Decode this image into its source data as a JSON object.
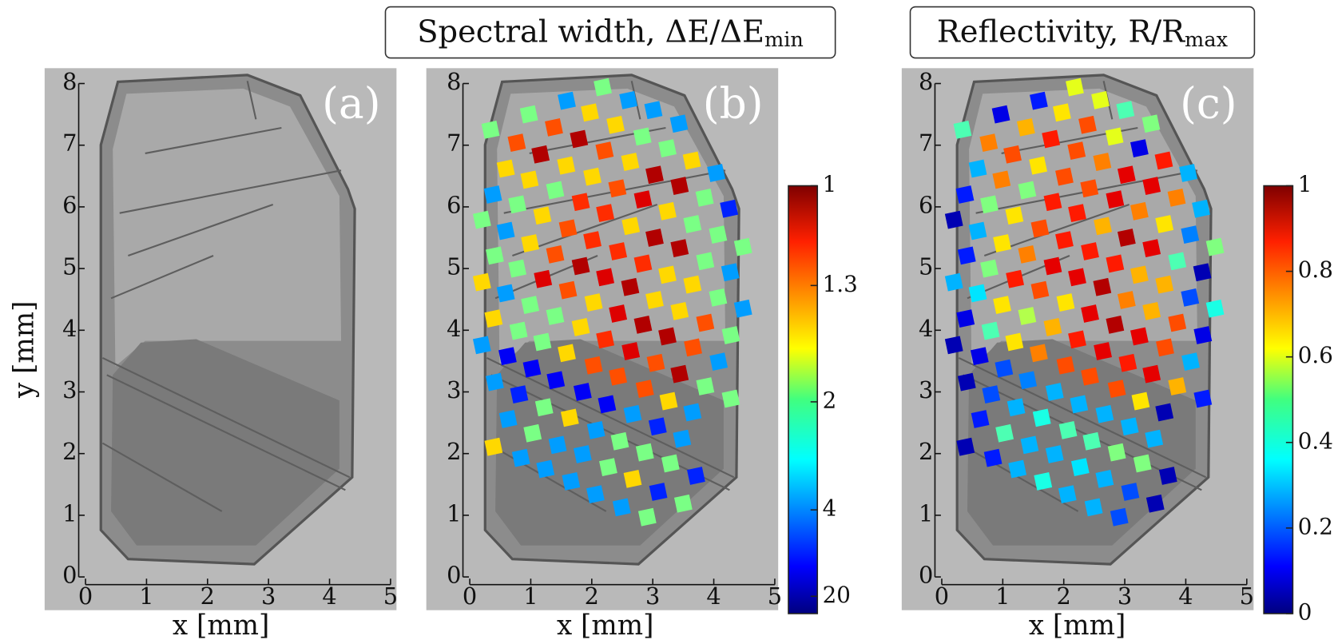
{
  "chart_data": [
    {
      "type": "image",
      "panel_label": "(a)",
      "xlabel": "x [mm]",
      "ylabel": "y [mm]",
      "xlim": [
        0,
        5
      ],
      "ylim": [
        0,
        8
      ],
      "xticks": [
        0,
        1,
        2,
        3,
        4,
        5
      ],
      "yticks": [
        0,
        1,
        2,
        3,
        4,
        5,
        6,
        7,
        8
      ]
    },
    {
      "type": "scatter",
      "panel_label": "(b)",
      "title": "Spectral width, ΔE/ΔE",
      "title_sub": "min",
      "xlabel": "x [mm]",
      "xlim": [
        0,
        5
      ],
      "ylim": [
        0,
        8
      ],
      "xticks": [
        0,
        1,
        2,
        3,
        4,
        5
      ],
      "yticks": [
        0,
        1,
        2,
        3,
        4,
        5,
        6,
        7,
        8
      ],
      "colorbar": {
        "lim": [
          1,
          100
        ],
        "ticks": [
          1,
          1.3,
          2,
          4,
          20
        ],
        "scale": "reciprocal",
        "colormap": "jet"
      },
      "x": [
        2.18,
        1.59,
        2.6,
        0.97,
        1.97,
        3.01,
        0.34,
        1.38,
        2.39,
        3.43,
        0.77,
        1.79,
        2.83,
        1.16,
        2.21,
        3.24,
        0.59,
        1.58,
        2.63,
        3.64,
        0.98,
        2.01,
        3.03,
        4.04,
        0.38,
        1.4,
        2.42,
        3.44,
        0.78,
        1.82,
        2.84,
        3.85,
        0.2,
        1.19,
        2.22,
        3.24,
        4.25,
        0.59,
        1.61,
        2.64,
        3.65,
        0.99,
        2.01,
        3.03,
        4.07,
        0.41,
        1.4,
        2.43,
        3.44,
        4.48,
        0.78,
        1.82,
        2.84,
        3.86,
        0.2,
        1.2,
        2.22,
        3.24,
        4.27,
        0.59,
        1.61,
        2.63,
        3.65,
        0.99,
        2.03,
        3.03,
        4.07,
        0.39,
        1.4,
        2.43,
        3.44,
        4.48,
        0.8,
        1.82,
        2.84,
        3.86,
        0.2,
        1.19,
        2.22,
        3.24,
        4.28,
        0.62,
        1.59,
        2.64,
        3.66,
        1.02,
        2.03,
        3.05,
        4.08,
        0.41,
        1.41,
        2.43,
        3.44,
        0.81,
        1.85,
        2.87,
        3.86,
        1.22,
        2.25,
        3.26,
        4.28,
        0.63,
        1.64,
        2.67,
        3.65,
        1.03,
        2.07,
        3.08,
        1.44,
        2.46,
        3.48,
        0.39,
        0.84,
        1.85,
        2.87,
        1.24,
        2.27,
        3.29,
        1.66,
        2.67,
        3.71,
        2.06,
        3.09,
        2.49,
        3.5,
        2.91
      ],
      "y": [
        7.94,
        7.72,
        7.73,
        7.5,
        7.53,
        7.57,
        7.25,
        7.29,
        7.33,
        7.35,
        7.04,
        7.1,
        7.14,
        6.85,
        6.91,
        6.95,
        6.62,
        6.67,
        6.73,
        6.75,
        6.44,
        6.49,
        6.52,
        6.55,
        6.2,
        6.27,
        6.3,
        6.34,
        6.04,
        6.08,
        6.12,
        6.15,
        5.79,
        5.86,
        5.9,
        5.93,
        5.97,
        5.61,
        5.65,
        5.69,
        5.72,
        5.41,
        5.46,
        5.5,
        5.55,
        5.21,
        5.23,
        5.28,
        5.33,
        5.35,
        5.0,
        5.04,
        5.08,
        5.12,
        4.78,
        4.83,
        4.86,
        4.9,
        4.94,
        4.6,
        4.65,
        4.7,
        4.74,
        4.41,
        4.45,
        4.49,
        4.53,
        4.19,
        4.23,
        4.27,
        4.31,
        4.35,
        3.99,
        4.05,
        4.09,
        4.12,
        3.76,
        3.81,
        3.85,
        3.9,
        3.92,
        3.58,
        3.63,
        3.66,
        3.72,
        3.38,
        3.43,
        3.47,
        3.49,
        3.16,
        3.19,
        3.25,
        3.29,
        2.96,
        3.0,
        3.05,
        3.09,
        2.75,
        2.8,
        2.85,
        2.89,
        2.56,
        2.58,
        2.64,
        2.67,
        2.33,
        2.38,
        2.44,
        2.14,
        2.2,
        2.24,
        2.11,
        1.93,
        1.99,
        2.02,
        1.75,
        1.78,
        1.84,
        1.55,
        1.59,
        1.64,
        1.34,
        1.38,
        1.13,
        1.19,
        0.97
      ],
      "values": [
        2,
        3.5,
        3.5,
        2,
        1.5,
        3.5,
        2,
        1.25,
        1.5,
        3.5,
        1.25,
        1.05,
        2,
        1.05,
        1.25,
        2,
        1.5,
        1.5,
        1.5,
        1.5,
        1.5,
        1.5,
        1.05,
        3.5,
        3.5,
        2,
        1.25,
        1.05,
        2,
        1.2,
        1.1,
        2,
        2,
        1.5,
        1.2,
        1.5,
        6,
        3.5,
        1.25,
        1.5,
        2,
        1.5,
        1.2,
        1.05,
        2,
        2,
        1.25,
        1.2,
        1.05,
        2,
        2,
        1.05,
        1.2,
        2,
        1.5,
        1.1,
        1.1,
        1.5,
        3.5,
        3.5,
        1.25,
        1.05,
        1.5,
        2,
        1.5,
        1.5,
        2,
        1.5,
        2,
        1.1,
        1.5,
        3.5,
        2,
        1.5,
        1.05,
        1.25,
        3.5,
        2,
        1.2,
        1.05,
        2,
        8,
        1.5,
        1.1,
        1.25,
        8,
        1.25,
        1.25,
        3.5,
        3.5,
        8,
        1.25,
        1.05,
        6,
        8,
        1.25,
        2,
        2,
        8,
        1.5,
        2,
        3.5,
        1.5,
        3.5,
        3.5,
        2,
        3.5,
        6,
        3.5,
        2,
        3.5,
        1.5,
        3.5,
        3.5,
        2,
        3.5,
        2,
        2,
        3.5,
        1.5,
        6,
        3.5,
        6,
        3.5,
        2,
        2
      ]
    },
    {
      "type": "scatter",
      "panel_label": "(c)",
      "title": "Reflectivity,  R/R",
      "title_sub": "max",
      "xlabel": "x [mm]",
      "xlim": [
        0,
        5
      ],
      "ylim": [
        0,
        8
      ],
      "xticks": [
        0,
        1,
        2,
        3,
        4,
        5
      ],
      "yticks": [
        0,
        1,
        2,
        3,
        4,
        5,
        6,
        7,
        8
      ],
      "colorbar": {
        "lim": [
          0,
          1
        ],
        "ticks": [
          0,
          0.2,
          0.4,
          0.6,
          0.8,
          1
        ],
        "scale": "linear",
        "colormap": "jet"
      },
      "x": [
        2.18,
        1.59,
        2.6,
        0.97,
        1.97,
        3.01,
        0.34,
        1.38,
        2.39,
        3.43,
        0.77,
        1.79,
        2.83,
        1.16,
        2.21,
        3.24,
        0.59,
        1.58,
        2.63,
        3.64,
        0.98,
        2.01,
        3.03,
        4.04,
        0.38,
        1.4,
        2.42,
        3.44,
        0.78,
        1.82,
        2.84,
        3.85,
        0.2,
        1.19,
        2.22,
        3.24,
        4.25,
        0.59,
        1.61,
        2.64,
        3.65,
        0.99,
        2.01,
        3.03,
        4.07,
        0.41,
        1.4,
        2.43,
        3.44,
        4.48,
        0.78,
        1.82,
        2.84,
        3.86,
        0.2,
        1.2,
        2.22,
        3.24,
        4.27,
        0.59,
        1.61,
        2.63,
        3.65,
        0.99,
        2.03,
        3.03,
        4.07,
        0.39,
        1.4,
        2.43,
        3.44,
        4.48,
        0.8,
        1.82,
        2.84,
        3.86,
        0.2,
        1.19,
        2.22,
        3.24,
        4.28,
        0.62,
        1.59,
        2.64,
        3.66,
        1.02,
        2.03,
        3.05,
        4.08,
        0.41,
        1.41,
        2.43,
        3.44,
        0.81,
        1.85,
        2.87,
        3.86,
        1.22,
        2.25,
        3.26,
        4.28,
        0.63,
        1.64,
        2.67,
        3.65,
        1.03,
        2.07,
        3.08,
        1.44,
        2.46,
        3.48,
        0.39,
        0.84,
        1.85,
        2.87,
        1.24,
        2.27,
        3.29,
        1.66,
        2.67,
        3.71,
        2.06,
        3.09,
        2.49,
        3.5,
        2.91
      ],
      "y": [
        7.94,
        7.72,
        7.73,
        7.5,
        7.53,
        7.57,
        7.25,
        7.29,
        7.33,
        7.35,
        7.04,
        7.1,
        7.14,
        6.85,
        6.91,
        6.95,
        6.62,
        6.67,
        6.73,
        6.75,
        6.44,
        6.49,
        6.52,
        6.55,
        6.2,
        6.27,
        6.3,
        6.34,
        6.04,
        6.08,
        6.12,
        6.15,
        5.79,
        5.86,
        5.9,
        5.93,
        5.97,
        5.61,
        5.65,
        5.69,
        5.72,
        5.41,
        5.46,
        5.5,
        5.55,
        5.21,
        5.23,
        5.28,
        5.33,
        5.35,
        5.0,
        5.04,
        5.08,
        5.12,
        4.78,
        4.83,
        4.86,
        4.9,
        4.94,
        4.6,
        4.65,
        4.7,
        4.74,
        4.41,
        4.45,
        4.49,
        4.53,
        4.19,
        4.23,
        4.27,
        4.31,
        4.35,
        3.99,
        4.05,
        4.09,
        4.12,
        3.76,
        3.81,
        3.85,
        3.9,
        3.92,
        3.58,
        3.63,
        3.66,
        3.72,
        3.38,
        3.43,
        3.47,
        3.49,
        3.16,
        3.19,
        3.25,
        3.29,
        2.96,
        3.0,
        3.05,
        3.09,
        2.75,
        2.8,
        2.85,
        2.89,
        2.56,
        2.58,
        2.64,
        2.67,
        2.33,
        2.38,
        2.44,
        2.14,
        2.2,
        2.24,
        2.11,
        1.93,
        1.99,
        2.02,
        1.75,
        1.78,
        1.84,
        1.55,
        1.59,
        1.64,
        1.34,
        1.38,
        1.13,
        1.19,
        0.97
      ],
      "values": [
        0.6,
        0.15,
        0.6,
        0.1,
        0.65,
        0.45,
        0.45,
        0.7,
        0.8,
        0.5,
        0.75,
        0.85,
        0.6,
        0.8,
        0.8,
        0.1,
        0.3,
        0.65,
        0.75,
        0.85,
        0.75,
        0.8,
        0.9,
        0.3,
        0.15,
        0.5,
        0.8,
        0.9,
        0.5,
        0.85,
        0.9,
        0.75,
        0.05,
        0.65,
        0.85,
        0.75,
        0.3,
        0.3,
        0.8,
        0.7,
        0.65,
        0.65,
        0.85,
        0.95,
        0.25,
        0.15,
        0.75,
        0.85,
        0.9,
        0.5,
        0.5,
        0.9,
        0.85,
        0.45,
        0.3,
        0.85,
        0.9,
        0.7,
        0.05,
        0.35,
        0.8,
        0.95,
        0.7,
        0.65,
        0.65,
        0.75,
        0.2,
        0.1,
        0.55,
        0.9,
        0.7,
        0.4,
        0.45,
        0.7,
        0.95,
        0.8,
        0.05,
        0.65,
        0.85,
        0.9,
        0.1,
        0.1,
        0.75,
        0.9,
        0.8,
        0.2,
        0.8,
        0.85,
        0.3,
        0.05,
        0.25,
        0.8,
        0.9,
        0.2,
        0.3,
        0.8,
        0.7,
        0.3,
        0.3,
        0.65,
        0.15,
        0.15,
        0.4,
        0.3,
        0.05,
        0.45,
        0.45,
        0.3,
        0.3,
        0.45,
        0.3,
        0.05,
        0.15,
        0.3,
        0.5,
        0.3,
        0.35,
        0.5,
        0.4,
        0.3,
        0.05,
        0.3,
        0.2,
        0.3,
        0.05,
        0.2
      ]
    }
  ]
}
